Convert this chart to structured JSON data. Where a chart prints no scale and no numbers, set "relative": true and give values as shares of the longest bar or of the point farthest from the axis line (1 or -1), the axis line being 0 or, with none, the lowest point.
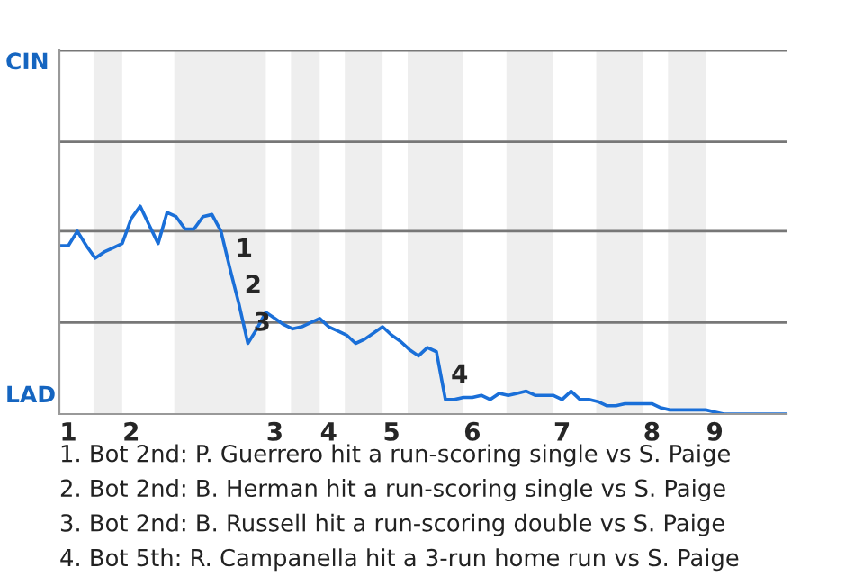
{
  "chart_data": {
    "type": "line",
    "relative": true,
    "categories": [
      null,
      "1",
      null,
      null,
      null,
      null,
      null,
      null,
      "2",
      null,
      null,
      null,
      null,
      null,
      null,
      null,
      null,
      null,
      null,
      null,
      null,
      null,
      null,
      null,
      "3",
      null,
      null,
      null,
      null,
      null,
      "4",
      null,
      null,
      null,
      null,
      null,
      null,
      "5",
      null,
      null,
      null,
      null,
      null,
      null,
      null,
      null,
      "6",
      null,
      null,
      null,
      null,
      null,
      null,
      null,
      null,
      null,
      "7",
      null,
      null,
      null,
      null,
      null,
      null,
      null,
      null,
      null,
      "8",
      null,
      null,
      null,
      null,
      null,
      null,
      "9",
      null,
      null,
      null,
      null,
      null,
      null,
      null,
      null
    ],
    "series": [
      {
        "color": "#1a6fd8",
        "values": [
          0.81,
          0.81,
          0.88,
          0.81,
          0.75,
          0.78,
          0.8,
          0.82,
          0.94,
          1.0,
          0.91,
          0.82,
          0.97,
          0.95,
          0.89,
          0.89,
          0.95,
          0.96,
          0.88,
          0.7,
          0.53,
          0.34,
          0.41,
          0.49,
          0.46,
          0.43,
          0.41,
          0.42,
          0.44,
          0.46,
          0.42,
          0.4,
          0.38,
          0.34,
          0.36,
          0.39,
          0.42,
          0.38,
          0.35,
          0.31,
          0.28,
          0.32,
          0.3,
          0.07,
          0.07,
          0.08,
          0.08,
          0.09,
          0.07,
          0.1,
          0.09,
          0.1,
          0.11,
          0.09,
          0.09,
          0.09,
          0.07,
          0.11,
          0.07,
          0.07,
          0.06,
          0.04,
          0.04,
          0.05,
          0.05,
          0.05,
          0.05,
          0.03,
          0.02,
          0.02,
          0.02,
          0.02,
          0.02,
          0.01,
          0,
          0,
          0,
          0,
          0,
          0,
          0,
          0
        ]
      }
    ],
    "ref_lines": [
      {
        "axis": "y",
        "value": 0.44,
        "color": "#777777"
      },
      {
        "axis": "y",
        "value": 0.88,
        "color": "#777777"
      },
      {
        "axis": "y",
        "value": 1.31,
        "color": "#777777"
      },
      {
        "axis": "y",
        "value": 1.75,
        "color": "#777777"
      }
    ],
    "annotations": [
      "CIN",
      "LAD",
      "1",
      "2",
      "3",
      "4",
      "1. Bot 2nd: P. Guerrero hit a run-scoring single vs S. Paige",
      "2. Bot 2nd: B. Herman hit a run-scoring single vs S. Paige",
      "3. Bot 2nd: B. Russell hit a run-scoring double vs S. Paige",
      "4. Bot 5th: R. Campanella hit a 3-run home run vs S. Paige"
    ]
  }
}
